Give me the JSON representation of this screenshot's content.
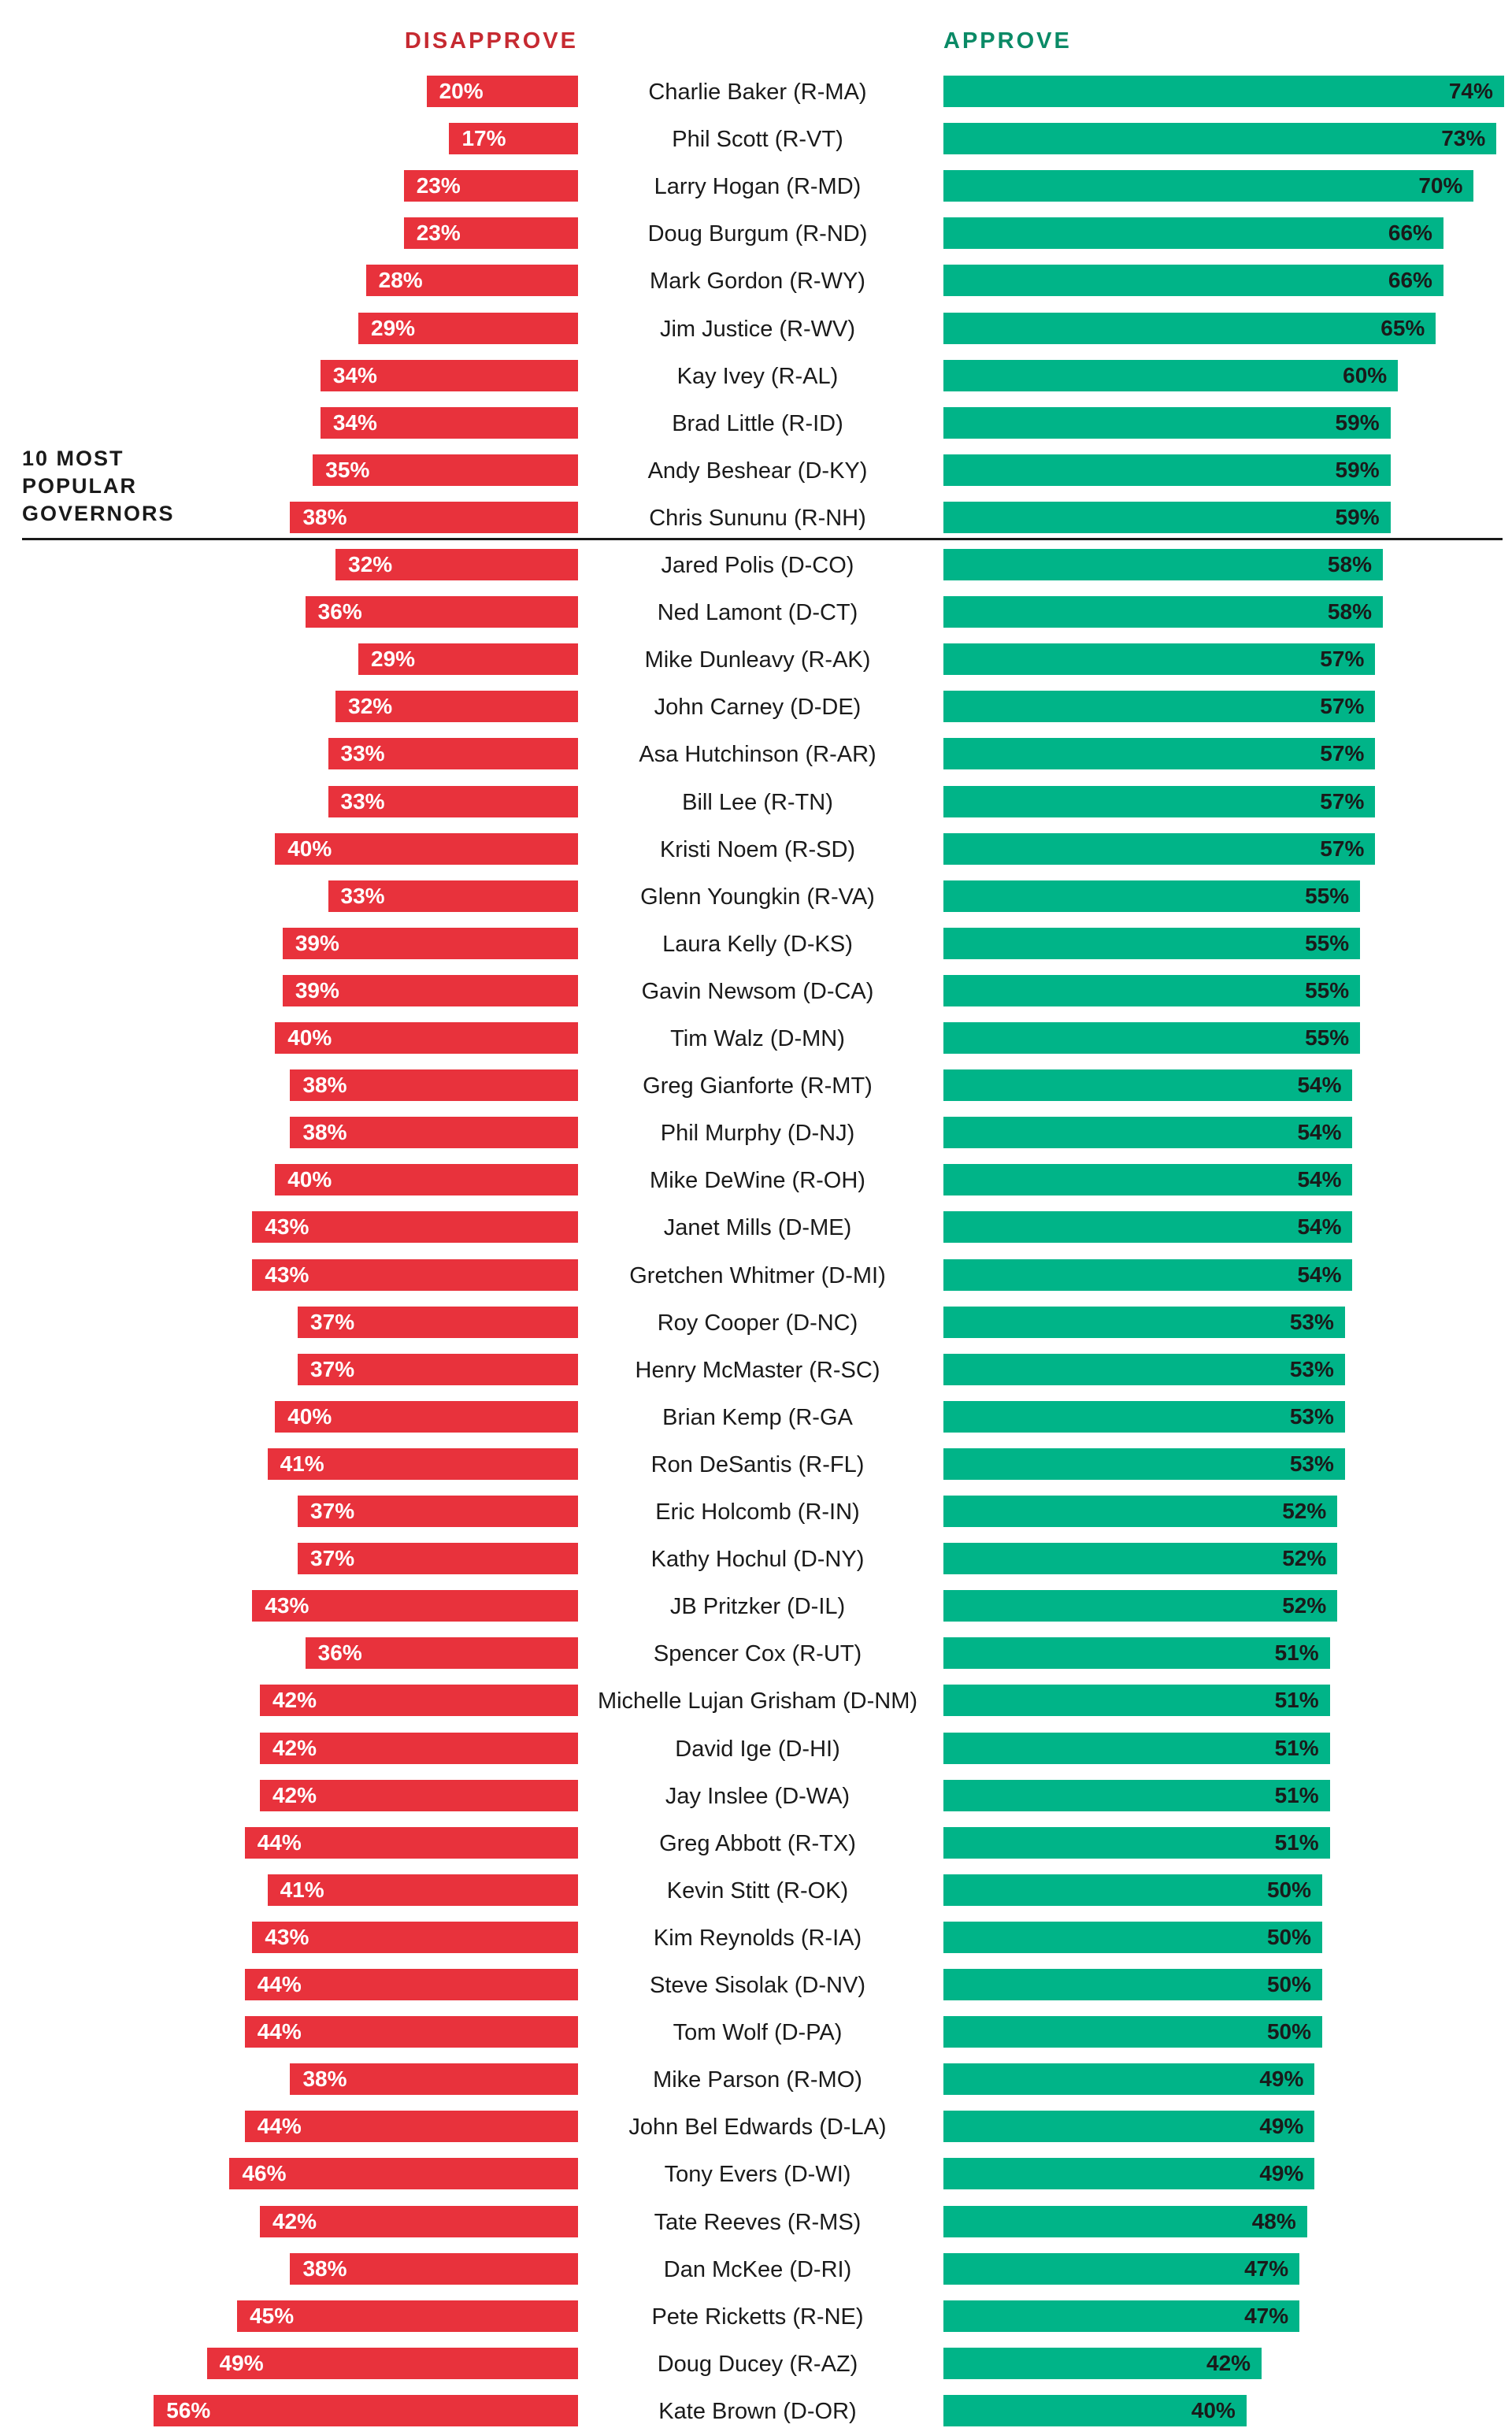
{
  "colors": {
    "disapprove": "#e8323c",
    "approve": "#00b488",
    "disapprove_header": "#c62a31",
    "approve_header": "#0a8a66"
  },
  "chart_data": {
    "type": "bar",
    "orientation": "horizontal-diverging",
    "title": "",
    "xlabel": "",
    "ylabel": "",
    "series": [
      {
        "name": "DISAPPROVE",
        "values": [
          20,
          17,
          23,
          23,
          28,
          29,
          34,
          34,
          35,
          38,
          32,
          36,
          29,
          32,
          33,
          33,
          40,
          33,
          39,
          39,
          40,
          38,
          38,
          40,
          43,
          43,
          37,
          37,
          40,
          41,
          37,
          37,
          43,
          36,
          42,
          42,
          42,
          44,
          41,
          43,
          44,
          44,
          38,
          44,
          46,
          42,
          38,
          45,
          49,
          56
        ]
      },
      {
        "name": "APPROVE",
        "values": [
          74,
          73,
          70,
          66,
          66,
          65,
          60,
          59,
          59,
          59,
          58,
          58,
          57,
          57,
          57,
          57,
          57,
          55,
          55,
          55,
          55,
          54,
          54,
          54,
          54,
          54,
          53,
          53,
          53,
          53,
          52,
          52,
          52,
          51,
          51,
          51,
          51,
          51,
          50,
          50,
          50,
          50,
          49,
          49,
          49,
          48,
          47,
          47,
          42,
          40
        ]
      }
    ],
    "categories": [
      "Charlie Baker (R-MA)",
      "Phil Scott (R-VT)",
      "Larry Hogan (R-MD)",
      "Doug Burgum (R-ND)",
      "Mark Gordon (R-WY)",
      "Jim Justice (R-WV)",
      "Kay Ivey (R-AL)",
      "Brad Little (R-ID)",
      "Andy Beshear (D-KY)",
      "Chris Sununu (R-NH)",
      "Jared Polis (D-CO)",
      "Ned Lamont (D-CT)",
      "Mike Dunleavy (R-AK)",
      "John Carney (D-DE)",
      "Asa Hutchinson (R-AR)",
      "Bill Lee (R-TN)",
      "Kristi Noem (R-SD)",
      "Glenn Youngkin (R-VA)",
      "Laura Kelly (D-KS)",
      "Gavin Newsom (D-CA)",
      "Tim Walz (D-MN)",
      "Greg Gianforte (R-MT)",
      "Phil Murphy (D-NJ)",
      "Mike DeWine (R-OH)",
      "Janet Mills (D-ME)",
      "Gretchen Whitmer (D-MI)",
      "Roy Cooper (D-NC)",
      "Henry McMaster (R-SC)",
      "Brian Kemp (R-GA",
      "Ron DeSantis (R-FL)",
      "Eric Holcomb (R-IN)",
      "Kathy Hochul (D-NY)",
      "JB Pritzker (D-IL)",
      "Spencer Cox (R-UT)",
      "Michelle Lujan Grisham (D-NM)",
      "David Ige (D-HI)",
      "Jay Inslee (D-WA)",
      "Greg Abbott (R-TX)",
      "Kevin Stitt (R-OK)",
      "Kim Reynolds (R-IA)",
      "Steve Sisolak (D-NV)",
      "Tom Wolf (D-PA)",
      "Mike Parson (R-MO)",
      "John Bel Edwards (D-LA)",
      "Tony Evers (D-WI)",
      "Tate Reeves (R-MS)",
      "Dan McKee (D-RI)",
      "Pete Ricketts (R-NE)",
      "Doug Ducey (R-AZ)",
      "Kate Brown (D-OR)"
    ],
    "value_suffix": "%",
    "grid": false,
    "annotation": {
      "lines": [
        "10 MOST",
        "POPULAR",
        "GOVERNORS"
      ],
      "after_category_count": 10
    }
  }
}
